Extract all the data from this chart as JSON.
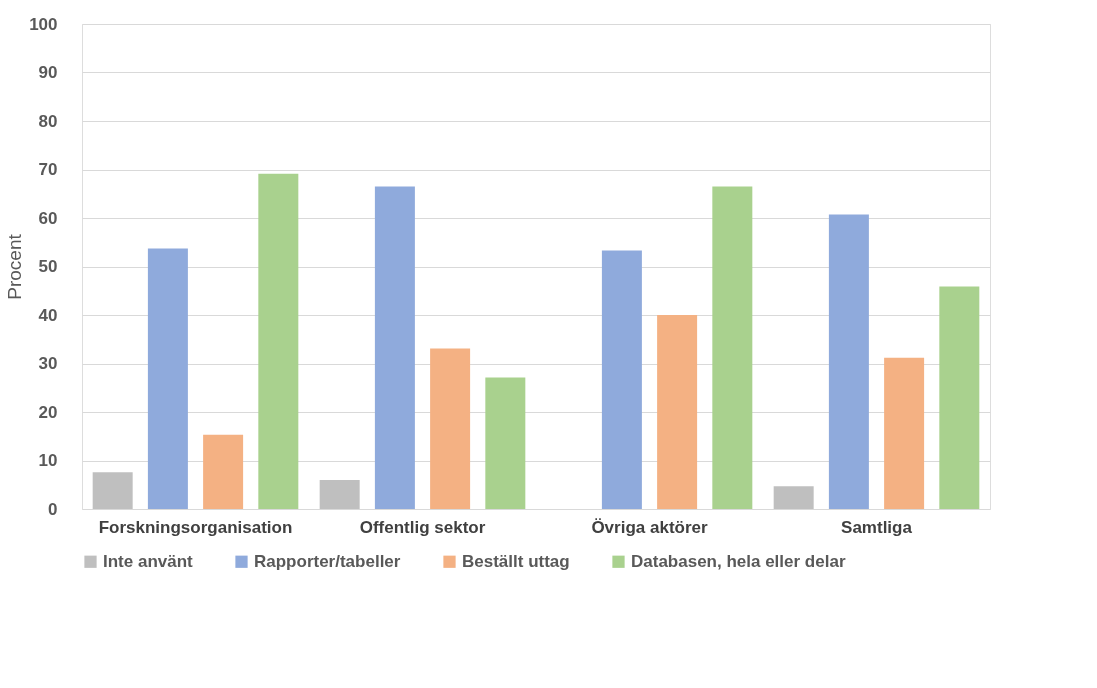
{
  "chart_data": {
    "type": "bar",
    "ylabel": "Procent",
    "categories": [
      "Forskningsorganisation",
      "Offentlig sektor",
      "Övriga aktörer",
      "Samtliga"
    ],
    "series": [
      {
        "name": "Inte använt",
        "color": "#bfbfbf",
        "values": [
          7.6,
          6.0,
          0,
          4.7
        ]
      },
      {
        "name": "Rapporter/tabeller",
        "color": "#8faadc",
        "values": [
          53.7,
          66.5,
          53.3,
          60.7
        ]
      },
      {
        "name": "Beställt uttag",
        "color": "#f4b183",
        "values": [
          15.3,
          33.1,
          40.0,
          31.2
        ]
      },
      {
        "name": "Databasen, hela eller delar",
        "color": "#a9d18e",
        "values": [
          69.1,
          27.1,
          66.5,
          45.9
        ]
      }
    ],
    "ylim": [
      0,
      100
    ],
    "yticks": [
      0,
      10,
      20,
      30,
      40,
      50,
      60,
      70,
      80,
      90,
      100
    ],
    "grid": "y",
    "legend": "bottom"
  }
}
